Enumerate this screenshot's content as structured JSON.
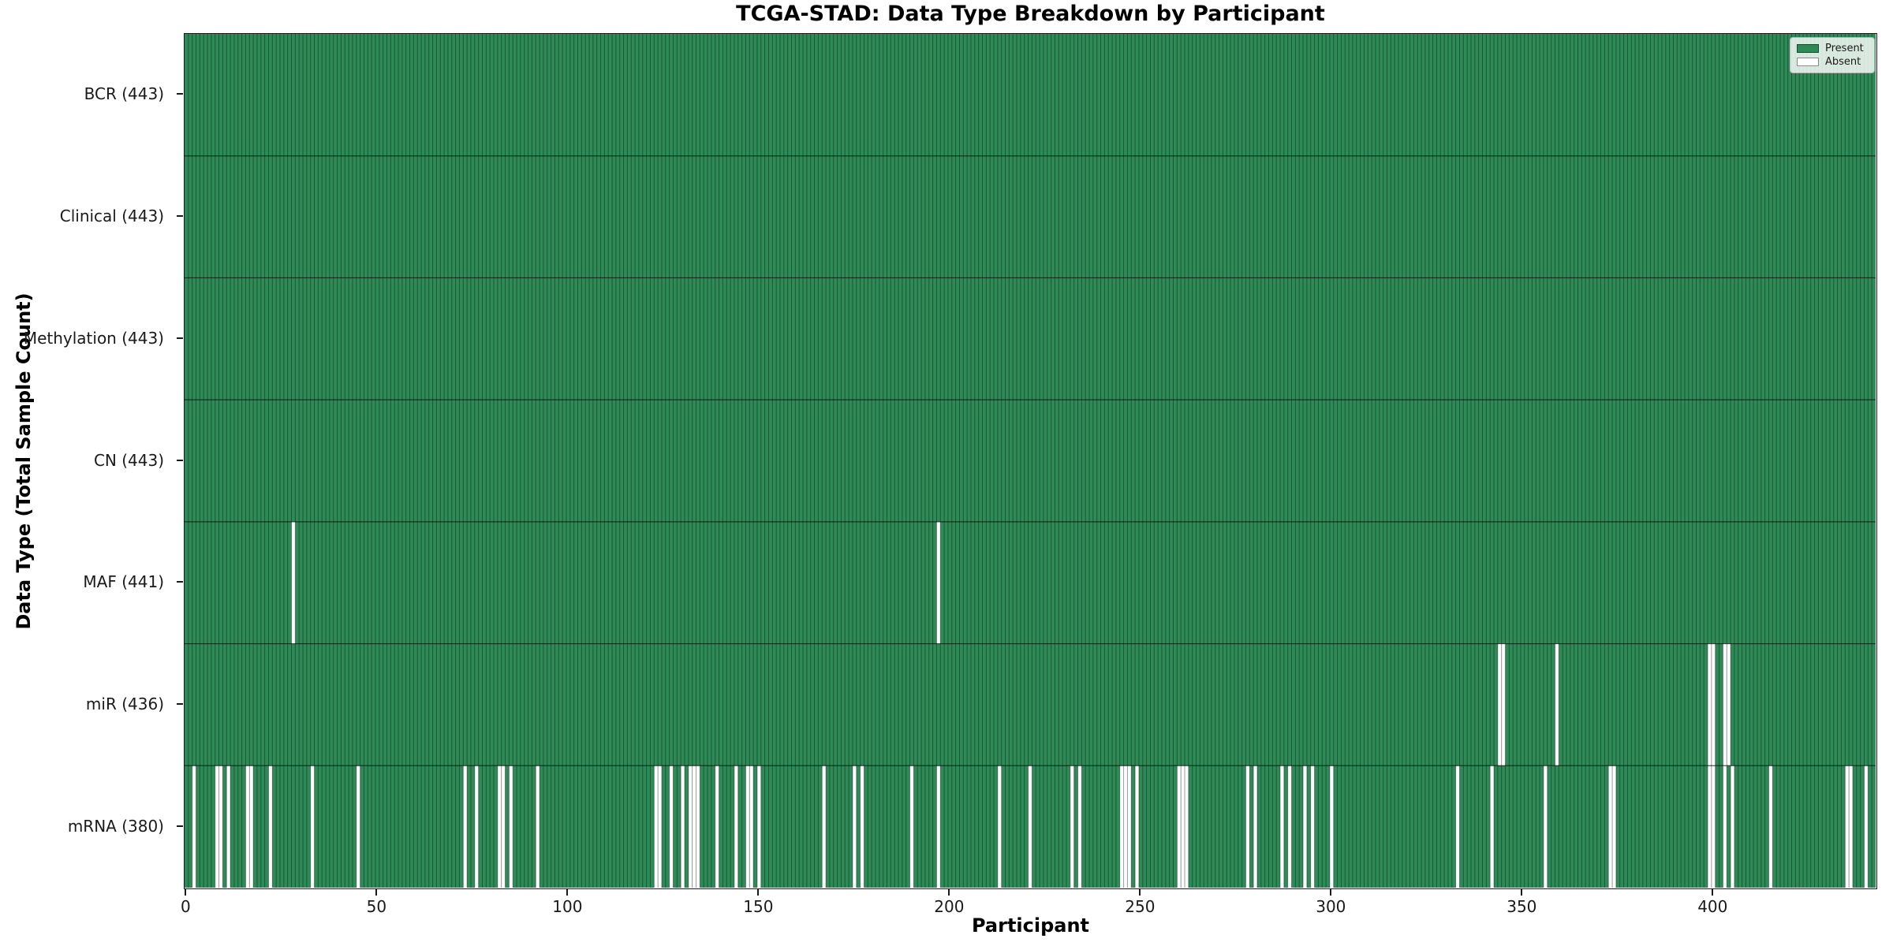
{
  "title": "TCGA-STAD: Data Type Breakdown by Participant",
  "x_axis_label": "Participant",
  "y_axis_label": "Data Type (Total Sample Count)",
  "legend": [
    {
      "label": "Present",
      "color": "#2e8b57"
    },
    {
      "label": "Absent",
      "color": "#ffffff"
    }
  ],
  "colors": {
    "present": "#2e8b57",
    "absent": "#ffffff",
    "cell_edge": "rgba(0,0,0,0.38)",
    "row_divider": "rgba(0,0,0,0.65)",
    "axis": "#1a1a1a"
  },
  "chart_data": {
    "type": "heatmap",
    "title": "TCGA-STAD: Data Type Breakdown by Participant",
    "xlabel": "Participant",
    "ylabel": "Data Type (Total Sample Count)",
    "legend": [
      "Present",
      "Absent"
    ],
    "legend_position": "upper right",
    "grid": false,
    "n_participants": 443,
    "x_range": [
      0,
      443
    ],
    "x_ticks": [
      0,
      50,
      100,
      150,
      200,
      250,
      300,
      350,
      400
    ],
    "rows": [
      {
        "label": "BCR (443)",
        "name": "BCR",
        "total": 443,
        "absent": []
      },
      {
        "label": "Clinical (443)",
        "name": "Clinical",
        "total": 443,
        "absent": []
      },
      {
        "label": "Methylation (443)",
        "name": "Methylation",
        "total": 443,
        "absent": []
      },
      {
        "label": "CN (443)",
        "name": "CN",
        "total": 443,
        "absent": []
      },
      {
        "label": "MAF (441)",
        "name": "MAF",
        "total": 441,
        "absent": [
          28,
          197
        ]
      },
      {
        "label": "miR (436)",
        "name": "miR",
        "total": 436,
        "absent": [
          344,
          345,
          359,
          399,
          400,
          403,
          404
        ]
      },
      {
        "label": "mRNA (380)",
        "name": "mRNA",
        "total": 380,
        "absent": [
          2,
          8,
          9,
          11,
          16,
          17,
          22,
          33,
          45,
          73,
          76,
          82,
          83,
          85,
          92,
          123,
          124,
          127,
          130,
          132,
          133,
          134,
          139,
          144,
          147,
          148,
          150,
          167,
          175,
          177,
          190,
          197,
          213,
          221,
          232,
          234,
          245,
          246,
          247,
          249,
          260,
          261,
          262,
          278,
          280,
          287,
          289,
          293,
          295,
          300,
          333,
          342,
          356,
          373,
          374,
          399,
          400,
          403,
          405,
          415,
          435,
          436,
          440
        ]
      }
    ]
  }
}
